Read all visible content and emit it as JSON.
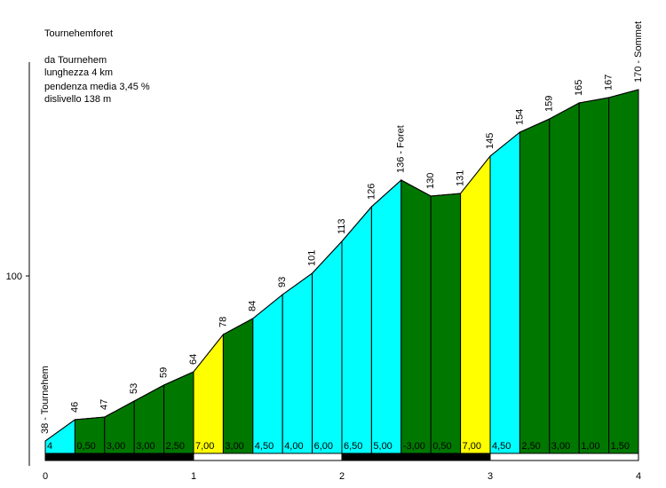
{
  "header": {
    "title": "Tournehemforet",
    "lines": [
      "da Tournehem",
      "lunghezza 4 km",
      "pendenza media 3,45 %",
      "dislivello 138 m"
    ]
  },
  "colors": {
    "cyan": "#00ffff",
    "green": "#007800",
    "yellow": "#ffff00",
    "black": "#000000",
    "white": "#ffffff"
  },
  "chart_data": {
    "type": "area",
    "title": "Tournehemforet",
    "x_unit": "km",
    "x_ticks": [
      0,
      1,
      2,
      3,
      4
    ],
    "y_ticks": [
      100
    ],
    "ylim": [
      20,
      180
    ],
    "xlim": [
      0,
      4
    ],
    "points": [
      {
        "x": 0.0,
        "y": 38,
        "label": "38 - Tournehem"
      },
      {
        "x": 0.2,
        "y": 46,
        "label": "46"
      },
      {
        "x": 0.4,
        "y": 47,
        "label": "47"
      },
      {
        "x": 0.6,
        "y": 53,
        "label": "53"
      },
      {
        "x": 0.8,
        "y": 59,
        "label": "59"
      },
      {
        "x": 1.0,
        "y": 64,
        "label": "64"
      },
      {
        "x": 1.2,
        "y": 78,
        "label": "78"
      },
      {
        "x": 1.4,
        "y": 84,
        "label": "84"
      },
      {
        "x": 1.6,
        "y": 93,
        "label": "93"
      },
      {
        "x": 1.8,
        "y": 101,
        "label": "101"
      },
      {
        "x": 2.0,
        "y": 113,
        "label": "113"
      },
      {
        "x": 2.2,
        "y": 126,
        "label": "126"
      },
      {
        "x": 2.4,
        "y": 136,
        "label": "136 - Foret"
      },
      {
        "x": 2.6,
        "y": 130,
        "label": "130"
      },
      {
        "x": 2.8,
        "y": 131,
        "label": "131"
      },
      {
        "x": 3.0,
        "y": 145,
        "label": "145"
      },
      {
        "x": 3.2,
        "y": 154,
        "label": "154"
      },
      {
        "x": 3.4,
        "y": 159,
        "label": "159"
      },
      {
        "x": 3.6,
        "y": 165,
        "label": "165"
      },
      {
        "x": 3.8,
        "y": 167,
        "label": "167"
      },
      {
        "x": 4.0,
        "y": 170,
        "label": "170 - Sommet"
      }
    ],
    "segments": [
      {
        "grade": "4",
        "color": "cyan"
      },
      {
        "grade": "0,50",
        "color": "green"
      },
      {
        "grade": "3,00",
        "color": "green"
      },
      {
        "grade": "3,00",
        "color": "green"
      },
      {
        "grade": "2,50",
        "color": "green"
      },
      {
        "grade": "7,00",
        "color": "yellow"
      },
      {
        "grade": "3,00",
        "color": "green"
      },
      {
        "grade": "4,50",
        "color": "cyan"
      },
      {
        "grade": "4,00",
        "color": "cyan"
      },
      {
        "grade": "6,00",
        "color": "cyan"
      },
      {
        "grade": "6,50",
        "color": "cyan"
      },
      {
        "grade": "5,00",
        "color": "cyan"
      },
      {
        "grade": "-3,00",
        "color": "green"
      },
      {
        "grade": "0,50",
        "color": "green"
      },
      {
        "grade": "7,00",
        "color": "yellow"
      },
      {
        "grade": "4,50",
        "color": "cyan"
      },
      {
        "grade": "2,50",
        "color": "green"
      },
      {
        "grade": "3,00",
        "color": "green"
      },
      {
        "grade": "1,00",
        "color": "green"
      },
      {
        "grade": "1,50",
        "color": "green"
      }
    ]
  }
}
